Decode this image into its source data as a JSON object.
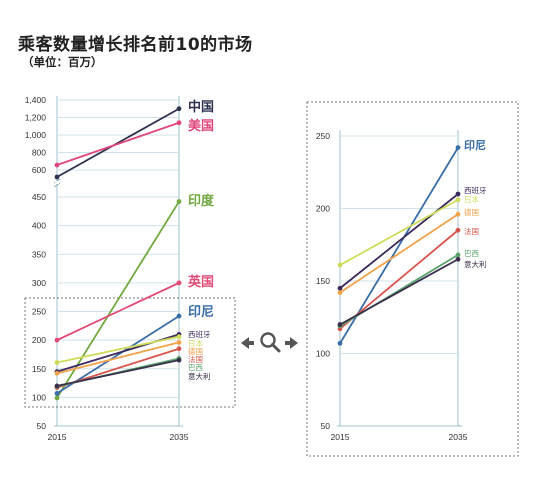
{
  "title": "乘客数量增长排名前10的市场",
  "subtitle": "（单位：百万）",
  "zoom_icon": "magnifier-with-arrows-icon",
  "chart_data": {
    "type": "line",
    "subtype": "slope",
    "x": [
      "2015",
      "2035"
    ],
    "series": [
      {
        "name": "中国",
        "color": "#2f3150",
        "values": [
          520,
          1300
        ]
      },
      {
        "name": "美国",
        "color": "#e0457d",
        "values": [
          657,
          1140
        ]
      },
      {
        "name": "印度",
        "color": "#71a83f",
        "values": [
          99,
          442
        ]
      },
      {
        "name": "英国",
        "color": "#e24c76",
        "values": [
          200,
          300
        ]
      },
      {
        "name": "印尼",
        "color": "#3a6ea8",
        "values": [
          107,
          242
        ]
      },
      {
        "name": "西班牙",
        "color": "#3d2a5e",
        "values": [
          145,
          210
        ]
      },
      {
        "name": "日本",
        "color": "#cfdc5a",
        "values": [
          161,
          206
        ]
      },
      {
        "name": "德国",
        "color": "#f2a24a",
        "values": [
          142,
          196
        ]
      },
      {
        "name": "法国",
        "color": "#d8544a",
        "values": [
          117,
          185
        ]
      },
      {
        "name": "巴西",
        "color": "#57a36b",
        "values": [
          119,
          168
        ]
      },
      {
        "name": "意大利",
        "color": "#3a2f4e",
        "values": [
          120,
          165
        ]
      }
    ],
    "left_panel": {
      "y_ticks_upper": [
        "1,400",
        "1,200",
        "1,000",
        "800",
        "600",
        "450"
      ],
      "y_ticks_lower": [
        "400",
        "350",
        "300",
        "250",
        "200",
        "150",
        "100",
        "50"
      ],
      "axis_break": "450-600",
      "x_ticks": [
        "2015",
        "2035"
      ]
    },
    "right_panel": {
      "ylim": [
        50,
        250
      ],
      "y_ticks": [
        "250",
        "200",
        "150",
        "100",
        "50"
      ],
      "x_ticks": [
        "2015",
        "2035"
      ]
    }
  }
}
